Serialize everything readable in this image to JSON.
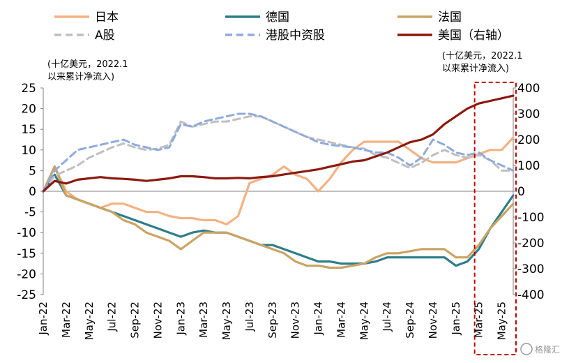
{
  "chart_data": {
    "type": "line",
    "x_start": "Jan-22",
    "x_end": "Jun-25",
    "xtick_labels": [
      "Jan-22",
      "Mar-22",
      "May-22",
      "Jul-22",
      "Sep-22",
      "Nov-22",
      "Jan-23",
      "Mar-23",
      "May-23",
      "Jul-23",
      "Sep-23",
      "Nov-23",
      "Jan-24",
      "Mar-24",
      "May-24",
      "Jul-24",
      "Sep-24",
      "Nov-24",
      "Jan-25",
      "Mar-25",
      "May-25"
    ],
    "y_left": {
      "min": -25,
      "max": 25,
      "step": 5,
      "ticks": [
        "25",
        "20",
        "15",
        "10",
        "5",
        "0",
        "-5",
        "-10",
        "-15",
        "-20",
        "-25"
      ],
      "unit": [
        "(十亿美元，2022.1",
        "以来累计净流入)"
      ]
    },
    "y_right": {
      "min": -400,
      "max": 400,
      "step": 100,
      "ticks": [
        "400",
        "300",
        "200",
        "100",
        "0",
        "-100",
        "-200",
        "-300",
        "-400"
      ],
      "unit": [
        "(十亿美元，2022.1",
        "以来累计净流入)"
      ]
    },
    "highlight_range": [
      "Mar-25",
      "Jun-25"
    ],
    "series": [
      {
        "name": "日本",
        "axis": "left",
        "color": "#F4B183",
        "dash": "solid",
        "x": [
          "Jan-22",
          "Feb-22",
          "Mar-22",
          "Apr-22",
          "May-22",
          "Jun-22",
          "Jul-22",
          "Aug-22",
          "Sep-22",
          "Oct-22",
          "Nov-22",
          "Dec-22",
          "Jan-23",
          "Feb-23",
          "Mar-23",
          "Apr-23",
          "May-23",
          "Jun-23",
          "Jul-23",
          "Aug-23",
          "Sep-23",
          "Oct-23",
          "Nov-23",
          "Dec-23",
          "Jan-24",
          "Feb-24",
          "Mar-24",
          "Apr-24",
          "May-24",
          "Jun-24",
          "Jul-24",
          "Aug-24",
          "Sep-24",
          "Oct-24",
          "Nov-24",
          "Dec-24",
          "Jan-25",
          "Feb-25",
          "Mar-25",
          "Apr-25",
          "May-25",
          "Jun-25"
        ],
        "y": [
          0,
          6,
          0,
          -2,
          -3,
          -4,
          -3,
          -3,
          -4,
          -5,
          -5,
          -6,
          -6.5,
          -6.5,
          -7,
          -7,
          -8,
          -6,
          2,
          3,
          4,
          6,
          4,
          3,
          0,
          3,
          7,
          10,
          12,
          12,
          12,
          12,
          10,
          8,
          7,
          7,
          7,
          8,
          9,
          10,
          10,
          13
        ]
      },
      {
        "name": "德国",
        "axis": "left",
        "color": "#2E7D8C",
        "dash": "solid",
        "x": [
          "Jan-22",
          "Feb-22",
          "Mar-22",
          "Apr-22",
          "May-22",
          "Jun-22",
          "Jul-22",
          "Aug-22",
          "Sep-22",
          "Oct-22",
          "Nov-22",
          "Dec-22",
          "Jan-23",
          "Feb-23",
          "Mar-23",
          "Apr-23",
          "May-23",
          "Jun-23",
          "Jul-23",
          "Aug-23",
          "Sep-23",
          "Oct-23",
          "Nov-23",
          "Dec-23",
          "Jan-24",
          "Feb-24",
          "Mar-24",
          "Apr-24",
          "May-24",
          "Jun-24",
          "Jul-24",
          "Aug-24",
          "Sep-24",
          "Oct-24",
          "Nov-24",
          "Dec-24",
          "Jan-25",
          "Feb-25",
          "Mar-25",
          "Apr-25",
          "May-25",
          "Jun-25"
        ],
        "y": [
          0,
          4,
          -1,
          -2,
          -3,
          -4,
          -5,
          -6,
          -7,
          -8,
          -9,
          -10,
          -11,
          -10,
          -9.5,
          -10,
          -10,
          -11,
          -12,
          -13,
          -13,
          -14,
          -15,
          -16,
          -17,
          -17,
          -17.5,
          -17.5,
          -17.5,
          -17,
          -16,
          -16,
          -16,
          -16,
          -16,
          -16,
          -18,
          -17,
          -14,
          -9,
          -5,
          -1
        ]
      },
      {
        "name": "法国",
        "axis": "left",
        "color": "#C9A464",
        "dash": "solid",
        "x": [
          "Jan-22",
          "Feb-22",
          "Mar-22",
          "Apr-22",
          "May-22",
          "Jun-22",
          "Jul-22",
          "Aug-22",
          "Sep-22",
          "Oct-22",
          "Nov-22",
          "Dec-22",
          "Jan-23",
          "Feb-23",
          "Mar-23",
          "Apr-23",
          "May-23",
          "Jun-23",
          "Jul-23",
          "Aug-23",
          "Sep-23",
          "Oct-23",
          "Nov-23",
          "Dec-23",
          "Jan-24",
          "Feb-24",
          "Mar-24",
          "Apr-24",
          "May-24",
          "Jun-24",
          "Jul-24",
          "Aug-24",
          "Sep-24",
          "Oct-24",
          "Nov-24",
          "Dec-24",
          "Jan-25",
          "Feb-25",
          "Mar-25",
          "Apr-25",
          "May-25",
          "Jun-25"
        ],
        "y": [
          0,
          6,
          -1,
          -2,
          -3,
          -4,
          -5,
          -7,
          -8,
          -10,
          -11,
          -12,
          -14,
          -12,
          -10,
          -10,
          -10,
          -11,
          -12,
          -13,
          -14,
          -15,
          -17,
          -18,
          -18,
          -18.5,
          -18.5,
          -18,
          -17.5,
          -16,
          -15,
          -15,
          -14.5,
          -14,
          -14,
          -14,
          -16,
          -16,
          -13,
          -9,
          -6,
          -3
        ]
      },
      {
        "name": "A股",
        "axis": "right",
        "color": "#BFBFBF",
        "dash": "dashed",
        "x": [
          "Jan-22",
          "Feb-22",
          "Mar-22",
          "Apr-22",
          "May-22",
          "Jun-22",
          "Jul-22",
          "Aug-22",
          "Sep-22",
          "Oct-22",
          "Nov-22",
          "Dec-22",
          "Jan-23",
          "Feb-23",
          "Mar-23",
          "Apr-23",
          "May-23",
          "Jun-23",
          "Jul-23",
          "Aug-23",
          "Sep-23",
          "Oct-23",
          "Nov-23",
          "Dec-23",
          "Jan-24",
          "Feb-24",
          "Mar-24",
          "Apr-24",
          "May-24",
          "Jun-24",
          "Jul-24",
          "Aug-24",
          "Sep-24",
          "Oct-24",
          "Nov-24",
          "Dec-24",
          "Jan-25",
          "Feb-25",
          "Mar-25",
          "Apr-25",
          "May-25",
          "Jun-25"
        ],
        "y": [
          0,
          60,
          80,
          100,
          130,
          150,
          170,
          185,
          170,
          160,
          165,
          180,
          270,
          250,
          260,
          270,
          270,
          280,
          290,
          290,
          270,
          250,
          230,
          210,
          200,
          190,
          180,
          170,
          165,
          140,
          130,
          110,
          90,
          110,
          140,
          160,
          140,
          130,
          140,
          120,
          80,
          80
        ]
      },
      {
        "name": "港股中资股",
        "axis": "right",
        "color": "#8FAADC",
        "dash": "dashed",
        "x": [
          "Jan-22",
          "Feb-22",
          "Mar-22",
          "Apr-22",
          "May-22",
          "Jun-22",
          "Jul-22",
          "Aug-22",
          "Sep-22",
          "Oct-22",
          "Nov-22",
          "Dec-22",
          "Jan-23",
          "Feb-23",
          "Mar-23",
          "Apr-23",
          "May-23",
          "Jun-23",
          "Jul-23",
          "Aug-23",
          "Sep-23",
          "Oct-23",
          "Nov-23",
          "Dec-23",
          "Jan-24",
          "Feb-24",
          "Mar-24",
          "Apr-24",
          "May-24",
          "Jun-24",
          "Jul-24",
          "Aug-24",
          "Sep-24",
          "Oct-24",
          "Nov-24",
          "Dec-24",
          "Jan-25",
          "Feb-25",
          "Mar-25",
          "Apr-25",
          "May-25",
          "Jun-25"
        ],
        "y": [
          0,
          80,
          120,
          160,
          170,
          180,
          190,
          200,
          180,
          170,
          160,
          170,
          260,
          250,
          270,
          280,
          290,
          300,
          300,
          290,
          270,
          250,
          230,
          210,
          190,
          180,
          175,
          170,
          160,
          150,
          150,
          130,
          100,
          130,
          200,
          180,
          150,
          140,
          150,
          120,
          100,
          80
        ]
      },
      {
        "name": "美国（右轴）",
        "axis": "right",
        "color": "#8B1A10",
        "dash": "solid",
        "x": [
          "Jan-22",
          "Feb-22",
          "Mar-22",
          "Apr-22",
          "May-22",
          "Jun-22",
          "Jul-22",
          "Aug-22",
          "Sep-22",
          "Oct-22",
          "Nov-22",
          "Dec-22",
          "Jan-23",
          "Feb-23",
          "Mar-23",
          "Apr-23",
          "May-23",
          "Jun-23",
          "Jul-23",
          "Aug-23",
          "Sep-23",
          "Oct-23",
          "Nov-23",
          "Dec-23",
          "Jan-24",
          "Feb-24",
          "Mar-24",
          "Apr-24",
          "May-24",
          "Jun-24",
          "Jul-24",
          "Aug-24",
          "Sep-24",
          "Oct-24",
          "Nov-24",
          "Dec-24",
          "Jan-25",
          "Feb-25",
          "Mar-25",
          "Apr-25",
          "May-25",
          "Jun-25"
        ],
        "y": [
          0,
          40,
          30,
          45,
          50,
          55,
          50,
          48,
          45,
          40,
          45,
          50,
          58,
          58,
          55,
          50,
          50,
          52,
          50,
          55,
          58,
          65,
          72,
          78,
          85,
          95,
          105,
          115,
          120,
          135,
          150,
          170,
          190,
          200,
          220,
          260,
          290,
          320,
          340,
          350,
          360,
          370
        ]
      }
    ]
  },
  "watermark": "格隆汇"
}
